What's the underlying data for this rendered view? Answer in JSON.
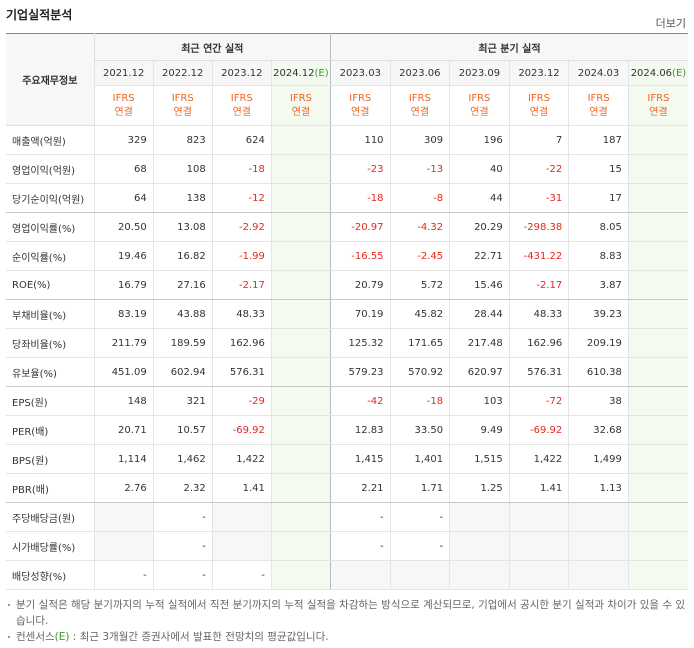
{
  "header": {
    "title": "기업실적분석",
    "more": "더보기"
  },
  "table": {
    "row_header_label": "주요재무정보",
    "group_headers": [
      "최근 연간 실적",
      "최근 분기 실적"
    ],
    "periods": [
      {
        "date": "2021.12"
      },
      {
        "date": "2022.12"
      },
      {
        "date": "2023.12"
      },
      {
        "date": "2024.12",
        "mark": "(E)"
      },
      {
        "date": "2023.03"
      },
      {
        "date": "2023.06"
      },
      {
        "date": "2023.09"
      },
      {
        "date": "2023.12"
      },
      {
        "date": "2024.03"
      },
      {
        "date": "2024.06",
        "mark": "(E)"
      }
    ],
    "basis": [
      [
        "IFRS",
        "연결"
      ],
      [
        "IFRS",
        "연결"
      ],
      [
        "IFRS",
        "연결"
      ],
      [
        "IFRS",
        "연결"
      ],
      [
        "IFRS",
        "연결"
      ],
      [
        "IFRS",
        "연결"
      ],
      [
        "IFRS",
        "연결"
      ],
      [
        "IFRS",
        "연결"
      ],
      [
        "IFRS",
        "연결"
      ],
      [
        "IFRS",
        "연결"
      ]
    ],
    "rows": [
      {
        "label": "매출액(억원)",
        "cells": [
          "329",
          "823",
          "624",
          null,
          "110",
          "309",
          "196",
          "7",
          "187",
          null
        ]
      },
      {
        "label": "영업이익(억원)",
        "cells": [
          "68",
          "108",
          "-18",
          null,
          "-23",
          "-13",
          "40",
          "-22",
          "15",
          null
        ]
      },
      {
        "label": "당기순이익(억원)",
        "cells": [
          "64",
          "138",
          "-12",
          null,
          "-18",
          "-8",
          "44",
          "-31",
          "17",
          null
        ]
      },
      {
        "label": "영업이익률(%)",
        "cells": [
          "20.50",
          "13.08",
          "-2.92",
          null,
          "-20.97",
          "-4.32",
          "20.29",
          "-298.38",
          "8.05",
          null
        ]
      },
      {
        "label": "순이익률(%)",
        "cells": [
          "19.46",
          "16.82",
          "-1.99",
          null,
          "-16.55",
          "-2.45",
          "22.71",
          "-431.22",
          "8.83",
          null
        ]
      },
      {
        "label": "ROE(%)",
        "cells": [
          "16.79",
          "27.16",
          "-2.17",
          null,
          "20.79",
          "5.72",
          "15.46",
          "-2.17",
          "3.87",
          null
        ]
      },
      {
        "label": "부채비율(%)",
        "cells": [
          "83.19",
          "43.88",
          "48.33",
          null,
          "70.19",
          "45.82",
          "28.44",
          "48.33",
          "39.23",
          null
        ]
      },
      {
        "label": "당좌비율(%)",
        "cells": [
          "211.79",
          "189.59",
          "162.96",
          null,
          "125.32",
          "171.65",
          "217.48",
          "162.96",
          "209.19",
          null
        ]
      },
      {
        "label": "유보율(%)",
        "cells": [
          "451.09",
          "602.94",
          "576.31",
          null,
          "579.23",
          "570.92",
          "620.97",
          "576.31",
          "610.38",
          null
        ]
      },
      {
        "label": "EPS(원)",
        "cells": [
          "148",
          "321",
          "-29",
          null,
          "-42",
          "-18",
          "103",
          "-72",
          "38",
          null
        ]
      },
      {
        "label": "PER(배)",
        "cells": [
          "20.71",
          "10.57",
          "-69.92",
          null,
          "12.83",
          "33.50",
          "9.49",
          "-69.92",
          "32.68",
          null
        ]
      },
      {
        "label": "BPS(원)",
        "cells": [
          "1,114",
          "1,462",
          "1,422",
          null,
          "1,415",
          "1,401",
          "1,515",
          "1,422",
          "1,499",
          null
        ]
      },
      {
        "label": "PBR(배)",
        "cells": [
          "2.76",
          "2.32",
          "1.41",
          null,
          "2.21",
          "1.71",
          "1.25",
          "1.41",
          "1.13",
          null
        ]
      },
      {
        "label": "주당배당금(원)",
        "cells": [
          null,
          "-",
          null,
          null,
          "-",
          "-",
          null,
          null,
          null,
          null
        ]
      },
      {
        "label": "시가배당률(%)",
        "cells": [
          null,
          "-",
          null,
          null,
          "-",
          "-",
          null,
          null,
          null,
          null
        ]
      },
      {
        "label": "배당성향(%)",
        "cells": [
          "-",
          "-",
          "-",
          null,
          null,
          null,
          null,
          null,
          null,
          null
        ]
      }
    ]
  },
  "footnotes": [
    {
      "text": "분기 실적은 해당 분기까지의 누적 실적에서 직전 분기까지의 누적 실적을 차감하는 방식으로 계산되므로, 기업에서 공시한 분기 실적과 차이가 있을 수 있습니다."
    },
    {
      "before": "컨센서스",
      "mark": "(E)",
      "after": " : 최근 3개월간 증권사에서 발표한 전망치의 평균값입니다."
    }
  ]
}
